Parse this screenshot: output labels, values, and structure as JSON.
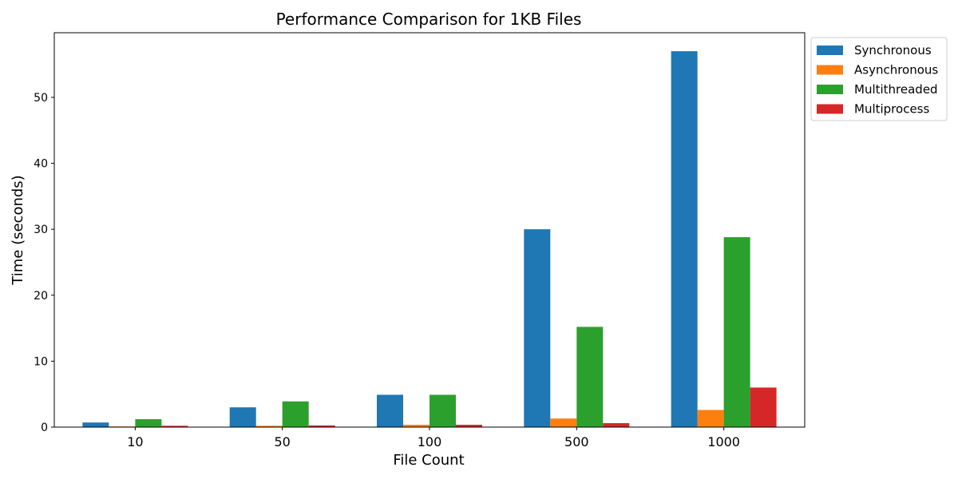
{
  "chart_data": {
    "type": "bar",
    "title": "Performance Comparison for 1KB Files",
    "xlabel": "File Count",
    "ylabel": "Time (seconds)",
    "categories": [
      "10",
      "50",
      "100",
      "500",
      "1000"
    ],
    "ylim": [
      0,
      59.8
    ],
    "yticks": [
      0,
      10,
      20,
      30,
      40,
      50
    ],
    "grid": false,
    "legend_position": "outside-top-right",
    "series": [
      {
        "name": "Synchronous",
        "color": "#1f77b4",
        "values": [
          0.7,
          3.0,
          4.9,
          30.0,
          57.0
        ]
      },
      {
        "name": "Asynchronous",
        "color": "#ff7f0e",
        "values": [
          0.1,
          0.2,
          0.35,
          1.3,
          2.6
        ]
      },
      {
        "name": "Multithreaded",
        "color": "#2ca02c",
        "values": [
          1.2,
          3.9,
          4.9,
          15.2,
          28.8
        ]
      },
      {
        "name": "Multiprocess",
        "color": "#d62728",
        "values": [
          0.2,
          0.25,
          0.35,
          0.6,
          6.0
        ]
      }
    ]
  }
}
